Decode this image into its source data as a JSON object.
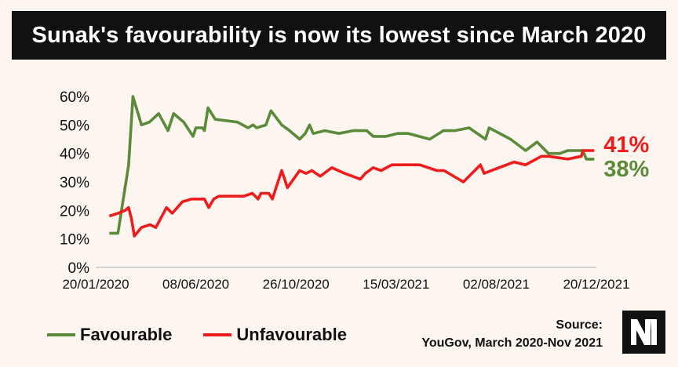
{
  "header": {
    "title": "Sunak's favourability is now its lowest since March 2020"
  },
  "legend": {
    "favourable": "Favourable",
    "unfavourable": "Unfavourable"
  },
  "source": {
    "line1": "Source:",
    "line2": "YouGov, March 2020-Nov 2021"
  },
  "logo": {
    "name": "nm-logo-icon"
  },
  "chart_data": {
    "type": "line",
    "title": "Sunak's favourability is now its lowest since March 2020",
    "xlabel": "",
    "ylabel": "",
    "ylim": [
      0,
      60
    ],
    "xlim": [
      "2020-01-20",
      "2021-12-20"
    ],
    "y_ticks": [
      "0%",
      "10%",
      "20%",
      "30%",
      "40%",
      "50%",
      "60%"
    ],
    "x_ticks": [
      "20/01/2020",
      "08/06/2020",
      "26/10/2020",
      "15/03/2021",
      "02/08/2021",
      "20/12/2021"
    ],
    "grid": false,
    "legend_position": "bottom-left",
    "end_labels": {
      "unfavourable": "41%",
      "favourable": "38%"
    },
    "series": [
      {
        "name": "Favourable",
        "color": "#5a8a3a",
        "points": [
          [
            "2020-02-08",
            12
          ],
          [
            "2020-02-20",
            12
          ],
          [
            "2020-03-01",
            28
          ],
          [
            "2020-03-06",
            36
          ],
          [
            "2020-03-12",
            60
          ],
          [
            "2020-03-24",
            50
          ],
          [
            "2020-04-04",
            51
          ],
          [
            "2020-04-17",
            54
          ],
          [
            "2020-04-30",
            48
          ],
          [
            "2020-05-08",
            54
          ],
          [
            "2020-05-22",
            51
          ],
          [
            "2020-06-04",
            46
          ],
          [
            "2020-06-08",
            49
          ],
          [
            "2020-06-17",
            49
          ],
          [
            "2020-06-20",
            48
          ],
          [
            "2020-06-25",
            56
          ],
          [
            "2020-07-05",
            52
          ],
          [
            "2020-08-05",
            51
          ],
          [
            "2020-08-20",
            49
          ],
          [
            "2020-08-27",
            50
          ],
          [
            "2020-09-01",
            49
          ],
          [
            "2020-09-14",
            50
          ],
          [
            "2020-09-21",
            55
          ],
          [
            "2020-10-06",
            50
          ],
          [
            "2020-10-17",
            48
          ],
          [
            "2020-10-31",
            45
          ],
          [
            "2020-11-08",
            47
          ],
          [
            "2020-11-14",
            50
          ],
          [
            "2020-11-19",
            47
          ],
          [
            "2020-12-05",
            48
          ],
          [
            "2020-12-25",
            47
          ],
          [
            "2021-01-14",
            48
          ],
          [
            "2021-02-02",
            48
          ],
          [
            "2021-02-11",
            46
          ],
          [
            "2021-03-01",
            46
          ],
          [
            "2021-03-17",
            47
          ],
          [
            "2021-04-01",
            47
          ],
          [
            "2021-05-01",
            45
          ],
          [
            "2021-05-20",
            48
          ],
          [
            "2021-06-05",
            48
          ],
          [
            "2021-06-25",
            49
          ],
          [
            "2021-07-18",
            45
          ],
          [
            "2021-07-23",
            49
          ],
          [
            "2021-08-22",
            45
          ],
          [
            "2021-09-12",
            41
          ],
          [
            "2021-09-28",
            44
          ],
          [
            "2021-10-14",
            40
          ],
          [
            "2021-10-30",
            40
          ],
          [
            "2021-11-10",
            41
          ],
          [
            "2021-11-26",
            41
          ],
          [
            "2021-12-01",
            41
          ],
          [
            "2021-12-06",
            38
          ],
          [
            "2021-12-17",
            38
          ]
        ]
      },
      {
        "name": "Unfavourable",
        "color": "#ee1c1c",
        "points": [
          [
            "2020-02-08",
            18
          ],
          [
            "2020-02-20",
            19
          ],
          [
            "2020-03-01",
            20
          ],
          [
            "2020-03-06",
            21
          ],
          [
            "2020-03-10",
            17
          ],
          [
            "2020-03-14",
            11
          ],
          [
            "2020-03-24",
            14
          ],
          [
            "2020-04-05",
            15
          ],
          [
            "2020-04-13",
            14
          ],
          [
            "2020-04-28",
            21
          ],
          [
            "2020-05-06",
            19
          ],
          [
            "2020-05-20",
            23
          ],
          [
            "2020-06-02",
            24
          ],
          [
            "2020-06-20",
            24
          ],
          [
            "2020-06-26",
            21
          ],
          [
            "2020-07-03",
            24
          ],
          [
            "2020-07-10",
            25
          ],
          [
            "2020-07-25",
            25
          ],
          [
            "2020-08-14",
            25
          ],
          [
            "2020-08-26",
            26
          ],
          [
            "2020-09-03",
            24
          ],
          [
            "2020-09-07",
            26
          ],
          [
            "2020-09-18",
            26
          ],
          [
            "2020-09-23",
            24
          ],
          [
            "2020-10-06",
            34
          ],
          [
            "2020-10-14",
            28
          ],
          [
            "2020-10-31",
            34
          ],
          [
            "2020-11-09",
            33
          ],
          [
            "2020-11-17",
            34
          ],
          [
            "2020-11-29",
            32
          ],
          [
            "2020-12-15",
            35
          ],
          [
            "2021-01-02",
            33
          ],
          [
            "2021-01-24",
            31
          ],
          [
            "2021-01-31",
            33
          ],
          [
            "2021-02-11",
            35
          ],
          [
            "2021-02-22",
            34
          ],
          [
            "2021-03-09",
            36
          ],
          [
            "2021-04-01",
            36
          ],
          [
            "2021-04-17",
            36
          ],
          [
            "2021-05-11",
            34
          ],
          [
            "2021-05-21",
            34
          ],
          [
            "2021-06-17",
            30
          ],
          [
            "2021-07-11",
            36
          ],
          [
            "2021-07-16",
            33
          ],
          [
            "2021-08-06",
            35
          ],
          [
            "2021-08-27",
            37
          ],
          [
            "2021-09-12",
            36
          ],
          [
            "2021-10-04",
            39
          ],
          [
            "2021-10-14",
            39
          ],
          [
            "2021-11-10",
            38
          ],
          [
            "2021-11-29",
            39
          ],
          [
            "2021-12-01",
            41
          ],
          [
            "2021-12-17",
            41
          ]
        ]
      }
    ]
  }
}
